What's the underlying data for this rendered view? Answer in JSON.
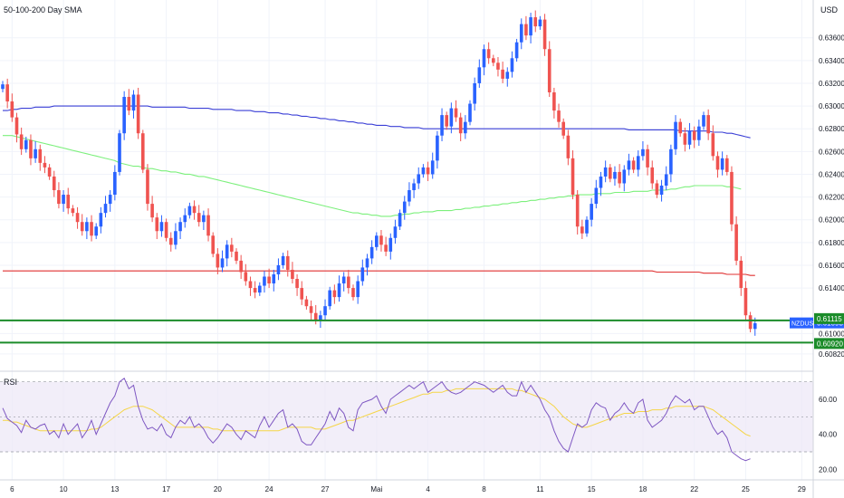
{
  "header": {
    "indicator_title": "50-100-200 Day SMA",
    "currency": "USD"
  },
  "rsi_panel": {
    "title": "RSI"
  },
  "colors": {
    "bull": "#2962ff",
    "bear": "#ef5350",
    "sma50": "#7cf07c",
    "sma100": "#3a3fd6",
    "sma200": "#e03131",
    "support": "#1b8c2a",
    "rsi_line": "#7e57c2",
    "rsi_ma": "#f5d547",
    "rsi_band": "#ede7f6",
    "symbol_tag": "#2962ff",
    "level_tag": "#1b8c2a"
  },
  "chart_data": [
    {
      "type": "candlestick",
      "symbol": "NZDUSD",
      "ylim": [
        0.607,
        0.639
      ],
      "y_ticks": [
        "0.63600",
        "0.63400",
        "0.63200",
        "0.63000",
        "0.62800",
        "0.62600",
        "0.62400",
        "0.62200",
        "0.62000",
        "0.61800",
        "0.61600",
        "0.61400",
        "0.61000",
        "0.60820"
      ],
      "x_ticks": [
        {
          "label": "6",
          "index": 2
        },
        {
          "label": "10",
          "index": 13
        },
        {
          "label": "13",
          "index": 24
        },
        {
          "label": "17",
          "index": 35
        },
        {
          "label": "20",
          "index": 46
        },
        {
          "label": "24",
          "index": 57
        },
        {
          "label": "27",
          "index": 69
        },
        {
          "label": "Mai",
          "index": 80
        },
        {
          "label": "4",
          "index": 91
        },
        {
          "label": "8",
          "index": 103
        },
        {
          "label": "11",
          "index": 115
        },
        {
          "label": "15",
          "index": 126
        },
        {
          "label": "18",
          "index": 137
        },
        {
          "label": "22",
          "index": 148
        },
        {
          "label": "25",
          "index": 159
        },
        {
          "label": "29",
          "index": 171
        }
      ],
      "close": [
        0.6319,
        0.6304,
        0.629,
        0.6275,
        0.6262,
        0.627,
        0.6254,
        0.6262,
        0.625,
        0.6246,
        0.6238,
        0.6226,
        0.6214,
        0.6222,
        0.621,
        0.6206,
        0.6198,
        0.619,
        0.6198,
        0.6186,
        0.6194,
        0.6206,
        0.6214,
        0.6222,
        0.6242,
        0.6276,
        0.6308,
        0.6296,
        0.631,
        0.6276,
        0.6244,
        0.6214,
        0.6202,
        0.619,
        0.6198,
        0.6184,
        0.6178,
        0.619,
        0.6198,
        0.6204,
        0.6212,
        0.6206,
        0.6198,
        0.6204,
        0.6186,
        0.617,
        0.6158,
        0.6166,
        0.6178,
        0.6172,
        0.6164,
        0.6154,
        0.6146,
        0.614,
        0.6136,
        0.6142,
        0.615,
        0.6144,
        0.6152,
        0.616,
        0.6168,
        0.6156,
        0.6148,
        0.614,
        0.613,
        0.6124,
        0.6118,
        0.6112,
        0.6116,
        0.6124,
        0.6138,
        0.6132,
        0.6144,
        0.615,
        0.614,
        0.6132,
        0.6146,
        0.6158,
        0.6166,
        0.6176,
        0.6186,
        0.6178,
        0.6172,
        0.6184,
        0.6194,
        0.6206,
        0.6216,
        0.6226,
        0.6232,
        0.624,
        0.6246,
        0.624,
        0.6252,
        0.6274,
        0.6292,
        0.6282,
        0.6298,
        0.629,
        0.6276,
        0.6286,
        0.6302,
        0.632,
        0.6334,
        0.635,
        0.6342,
        0.6338,
        0.6332,
        0.6324,
        0.633,
        0.6342,
        0.6356,
        0.6372,
        0.6362,
        0.6378,
        0.637,
        0.6376,
        0.635,
        0.6312,
        0.6296,
        0.6286,
        0.6274,
        0.6254,
        0.6222,
        0.6194,
        0.6188,
        0.62,
        0.6214,
        0.6228,
        0.6238,
        0.6246,
        0.6236,
        0.6242,
        0.6232,
        0.6244,
        0.6252,
        0.6244,
        0.6256,
        0.6262,
        0.6246,
        0.6232,
        0.6222,
        0.623,
        0.624,
        0.6262,
        0.6286,
        0.6276,
        0.6266,
        0.6278,
        0.627,
        0.6282,
        0.6292,
        0.6276,
        0.6256,
        0.6244,
        0.6254,
        0.6242,
        0.6196,
        0.6164,
        0.614,
        0.6116,
        0.6104,
        0.6109
      ],
      "sma50": [
        0.6274,
        0.6274,
        0.6274,
        0.6273,
        0.6272,
        0.6271,
        0.627,
        0.6269,
        0.6268,
        0.6267,
        0.6266,
        0.6265,
        0.6264,
        0.6263,
        0.6262,
        0.6261,
        0.626,
        0.6259,
        0.6258,
        0.6257,
        0.6256,
        0.6255,
        0.6254,
        0.6253,
        0.6252,
        0.625,
        0.6249,
        0.6248,
        0.6247,
        0.6247,
        0.6246,
        0.6245,
        0.6245,
        0.6244,
        0.6243,
        0.6243,
        0.6242,
        0.6242,
        0.6241,
        0.624,
        0.624,
        0.6239,
        0.6238,
        0.6238,
        0.6237,
        0.6236,
        0.6235,
        0.6234,
        0.6233,
        0.6232,
        0.6231,
        0.623,
        0.6229,
        0.6228,
        0.6227,
        0.6226,
        0.6225,
        0.6224,
        0.6223,
        0.6222,
        0.6221,
        0.622,
        0.6219,
        0.6218,
        0.6217,
        0.6216,
        0.6215,
        0.6214,
        0.6213,
        0.6212,
        0.6211,
        0.621,
        0.6209,
        0.6208,
        0.6207,
        0.6206,
        0.6206,
        0.6205,
        0.6205,
        0.6204,
        0.6204,
        0.6203,
        0.6203,
        0.6203,
        0.6204,
        0.6204,
        0.6205,
        0.6205,
        0.6206,
        0.6206,
        0.6207,
        0.6207,
        0.6207,
        0.6208,
        0.6208,
        0.6208,
        0.6208,
        0.6209,
        0.6209,
        0.621,
        0.621,
        0.6211,
        0.6211,
        0.6212,
        0.6212,
        0.6213,
        0.6213,
        0.6214,
        0.6214,
        0.6215,
        0.6215,
        0.6216,
        0.6216,
        0.6217,
        0.6217,
        0.6218,
        0.6218,
        0.6219,
        0.6219,
        0.622,
        0.622,
        0.6221,
        0.6221,
        0.6222,
        0.6222,
        0.6222,
        0.6222,
        0.6223,
        0.6223,
        0.6223,
        0.6223,
        0.6224,
        0.6224,
        0.6224,
        0.6224,
        0.6225,
        0.6225,
        0.6225,
        0.6225,
        0.6226,
        0.6226,
        0.6226,
        0.6226,
        0.6227,
        0.6227,
        0.6228,
        0.6229,
        0.6229,
        0.623,
        0.623,
        0.623,
        0.623,
        0.623,
        0.623,
        0.623,
        0.6229,
        0.6229,
        0.6228,
        0.6227
      ],
      "sma100": [
        0.6296,
        0.6296,
        0.6297,
        0.6297,
        0.6298,
        0.6298,
        0.6298,
        0.6299,
        0.6299,
        0.6299,
        0.6299,
        0.63,
        0.63,
        0.63,
        0.63,
        0.63,
        0.63,
        0.63,
        0.63,
        0.63,
        0.63,
        0.63,
        0.63,
        0.63,
        0.63,
        0.63,
        0.63,
        0.63,
        0.63,
        0.63,
        0.63,
        0.63,
        0.6299,
        0.6299,
        0.6299,
        0.6299,
        0.6299,
        0.6299,
        0.6299,
        0.6299,
        0.6298,
        0.6298,
        0.6298,
        0.6298,
        0.6298,
        0.6297,
        0.6297,
        0.6297,
        0.6297,
        0.6297,
        0.6296,
        0.6296,
        0.6296,
        0.6296,
        0.6295,
        0.6295,
        0.6295,
        0.6294,
        0.6294,
        0.6294,
        0.6293,
        0.6293,
        0.6292,
        0.6292,
        0.6291,
        0.6291,
        0.629,
        0.629,
        0.6289,
        0.6289,
        0.6288,
        0.6288,
        0.6287,
        0.6287,
        0.6286,
        0.6286,
        0.6285,
        0.6285,
        0.6284,
        0.6284,
        0.6283,
        0.6283,
        0.6283,
        0.6282,
        0.6282,
        0.6282,
        0.6281,
        0.6281,
        0.6281,
        0.6281,
        0.628,
        0.628,
        0.628,
        0.628,
        0.628,
        0.628,
        0.628,
        0.628,
        0.628,
        0.628,
        0.628,
        0.628,
        0.628,
        0.628,
        0.628,
        0.628,
        0.628,
        0.628,
        0.628,
        0.628,
        0.628,
        0.628,
        0.628,
        0.628,
        0.628,
        0.628,
        0.628,
        0.628,
        0.628,
        0.628,
        0.628,
        0.628,
        0.628,
        0.628,
        0.628,
        0.628,
        0.628,
        0.628,
        0.628,
        0.628,
        0.628,
        0.628,
        0.628,
        0.628,
        0.6279,
        0.6279,
        0.6279,
        0.6279,
        0.6279,
        0.6279,
        0.6279,
        0.6279,
        0.6279,
        0.6279,
        0.6279,
        0.6278,
        0.6278,
        0.6278,
        0.6278,
        0.6278,
        0.6278,
        0.6278,
        0.6277,
        0.6277,
        0.6277,
        0.6276,
        0.6276,
        0.6275,
        0.6274,
        0.6273,
        0.6272
      ],
      "sma200": [
        0.6155,
        0.6155,
        0.6155,
        0.6155,
        0.6155,
        0.6155,
        0.6155,
        0.6155,
        0.6155,
        0.6155,
        0.6155,
        0.6155,
        0.6155,
        0.6155,
        0.6155,
        0.6155,
        0.6155,
        0.6155,
        0.6155,
        0.6155,
        0.6155,
        0.6155,
        0.6155,
        0.6155,
        0.6155,
        0.6155,
        0.6155,
        0.6155,
        0.6155,
        0.6155,
        0.6155,
        0.6155,
        0.6155,
        0.6155,
        0.6155,
        0.6155,
        0.6155,
        0.6155,
        0.6155,
        0.6155,
        0.6155,
        0.6155,
        0.6155,
        0.6155,
        0.6155,
        0.6155,
        0.6155,
        0.6155,
        0.6155,
        0.6155,
        0.6155,
        0.6155,
        0.6155,
        0.6155,
        0.6155,
        0.6155,
        0.6155,
        0.6155,
        0.6155,
        0.6155,
        0.6155,
        0.6155,
        0.6155,
        0.6155,
        0.6155,
        0.6155,
        0.6155,
        0.6155,
        0.6155,
        0.6155,
        0.6155,
        0.6155,
        0.6155,
        0.6155,
        0.6155,
        0.6155,
        0.6155,
        0.6155,
        0.6155,
        0.6155,
        0.6155,
        0.6155,
        0.6155,
        0.6155,
        0.6155,
        0.6155,
        0.6155,
        0.6155,
        0.6155,
        0.6155,
        0.6155,
        0.6155,
        0.6155,
        0.6155,
        0.6155,
        0.6155,
        0.6155,
        0.6155,
        0.6155,
        0.6155,
        0.6155,
        0.6155,
        0.6155,
        0.6155,
        0.6155,
        0.6155,
        0.6155,
        0.6155,
        0.6155,
        0.6155,
        0.6155,
        0.6155,
        0.6155,
        0.6155,
        0.6155,
        0.6155,
        0.6155,
        0.6155,
        0.6155,
        0.6155,
        0.6155,
        0.6155,
        0.6155,
        0.6155,
        0.6155,
        0.6155,
        0.6155,
        0.6155,
        0.6155,
        0.6155,
        0.6155,
        0.6155,
        0.6155,
        0.6155,
        0.6155,
        0.6155,
        0.6155,
        0.6155,
        0.6155,
        0.6155,
        0.6154,
        0.6154,
        0.6154,
        0.6154,
        0.6154,
        0.6154,
        0.6154,
        0.6154,
        0.6154,
        0.6154,
        0.6153,
        0.6153,
        0.6153,
        0.6153,
        0.6153,
        0.6152,
        0.6152,
        0.6152,
        0.6152,
        0.6152,
        0.6151,
        0.6151
      ],
      "horizontal_levels": [
        {
          "name": "upper",
          "value": "0.61115"
        },
        {
          "name": "lower",
          "value": "0.60920"
        }
      ],
      "price_tags": [
        {
          "label": "NZDUSD",
          "value": "0.61093"
        },
        {
          "value": "0.61115"
        },
        {
          "value": "0.60920"
        }
      ]
    },
    {
      "type": "line",
      "title": "RSI",
      "ylim": [
        15,
        75
      ],
      "y_ticks": [
        "60.00",
        "40.00",
        "20.00"
      ],
      "bands": [
        30,
        50,
        70
      ],
      "rsi": [
        55,
        49,
        47,
        45,
        41,
        48,
        44,
        43,
        45,
        46,
        40,
        42,
        38,
        46,
        40,
        43,
        46,
        38,
        42,
        48,
        40,
        46,
        52,
        58,
        62,
        70,
        72,
        66,
        68,
        56,
        48,
        43,
        44,
        42,
        46,
        40,
        38,
        44,
        48,
        46,
        50,
        44,
        46,
        43,
        38,
        35,
        38,
        42,
        46,
        44,
        40,
        37,
        42,
        40,
        38,
        45,
        50,
        44,
        48,
        52,
        54,
        44,
        46,
        43,
        36,
        34,
        34,
        38,
        42,
        46,
        53,
        48,
        55,
        52,
        44,
        42,
        54,
        58,
        59,
        60,
        62,
        56,
        52,
        60,
        62,
        64,
        66,
        68,
        66,
        68,
        70,
        64,
        66,
        68,
        70,
        66,
        64,
        63,
        64,
        66,
        68,
        70,
        69,
        68,
        66,
        64,
        66,
        68,
        64,
        62,
        62,
        70,
        64,
        68,
        64,
        60,
        54,
        50,
        42,
        36,
        32,
        30,
        38,
        46,
        44,
        46,
        54,
        58,
        56,
        55,
        48,
        52,
        54,
        58,
        54,
        52,
        58,
        60,
        48,
        44,
        46,
        48,
        52,
        58,
        62,
        60,
        58,
        60,
        54,
        56,
        56,
        50,
        44,
        40,
        42,
        38,
        30,
        28,
        26,
        25,
        26
      ],
      "rsi_ma": [
        48,
        48,
        47,
        47,
        46,
        45,
        44,
        43,
        42,
        42,
        42,
        42,
        42,
        42,
        42,
        42,
        42,
        42,
        42,
        43,
        43,
        44,
        46,
        48,
        50,
        52,
        54,
        55,
        56,
        56,
        56,
        55,
        54,
        52,
        50,
        48,
        46,
        44,
        44,
        44,
        44,
        44,
        44,
        44,
        44,
        43,
        43,
        42,
        42,
        42,
        42,
        42,
        42,
        42,
        42,
        42,
        42,
        42,
        42,
        42,
        43,
        44,
        44,
        44,
        44,
        44,
        44,
        43,
        43,
        43,
        44,
        45,
        46,
        47,
        48,
        48,
        49,
        50,
        51,
        52,
        53,
        54,
        55,
        56,
        57,
        58,
        59,
        60,
        61,
        62,
        63,
        63,
        64,
        64,
        64,
        65,
        65,
        66,
        66,
        66,
        66,
        66,
        66,
        66,
        66,
        66,
        66,
        66,
        66,
        66,
        65,
        65,
        64,
        63,
        62,
        61,
        60,
        58,
        56,
        53,
        50,
        48,
        46,
        45,
        44,
        44,
        45,
        46,
        47,
        48,
        49,
        50,
        51,
        52,
        52,
        52,
        53,
        53,
        53,
        54,
        54,
        54,
        55,
        55,
        56,
        56,
        56,
        56,
        56,
        56,
        56,
        55,
        54,
        52,
        50,
        48,
        46,
        44,
        42,
        40,
        39
      ]
    }
  ]
}
